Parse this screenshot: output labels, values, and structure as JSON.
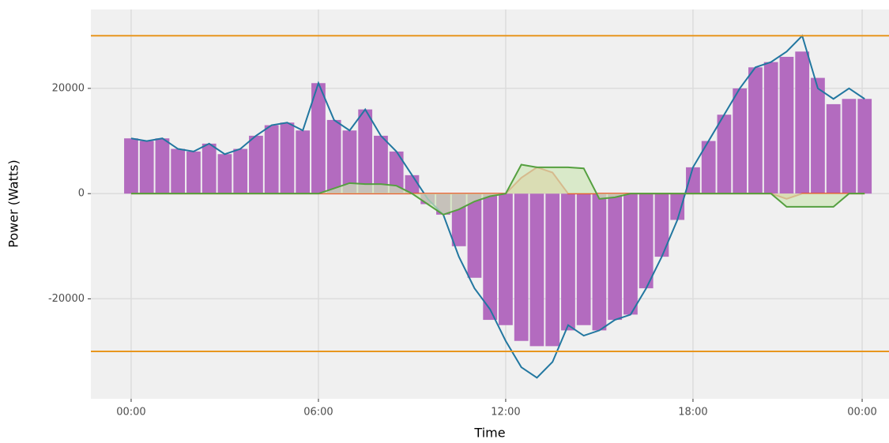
{
  "chart_data": {
    "type": "bar_line",
    "xlabel": "Time",
    "ylabel": "Power (Watts)",
    "xlim": [
      -1.29,
      24.28
    ],
    "ylim": [
      -39000,
      35000
    ],
    "xticks": [
      {
        "value": 0,
        "label": "00:00"
      },
      {
        "value": 6,
        "label": "06:00"
      },
      {
        "value": 12,
        "label": "12:00"
      },
      {
        "value": 18,
        "label": "18:00"
      },
      {
        "value": 23.42,
        "label": "00:00"
      }
    ],
    "yticks": [
      -20000,
      0,
      20000
    ],
    "grid": true,
    "x": [
      0,
      0.5,
      1,
      1.5,
      2,
      2.5,
      3,
      3.5,
      4,
      4.5,
      5,
      5.5,
      6,
      6.5,
      7,
      7.5,
      8,
      8.5,
      9,
      9.5,
      10,
      10.5,
      11,
      11.5,
      12,
      12.5,
      13,
      13.5,
      14,
      14.5,
      15,
      15.5,
      16,
      16.5,
      17,
      17.5,
      18,
      18.5,
      19,
      19.5,
      20,
      20.5,
      21,
      21.5,
      22,
      22.5,
      23,
      23.5
    ],
    "bars": {
      "color": "#b36bbf",
      "values": [
        10500,
        10000,
        10500,
        8500,
        8000,
        9500,
        7500,
        8500,
        11000,
        13000,
        13500,
        12000,
        21000,
        14000,
        12000,
        16000,
        11000,
        8000,
        3500,
        -2000,
        -4000,
        -10000,
        -16000,
        -24000,
        -25000,
        -28000,
        -29000,
        -29000,
        -26000,
        -25000,
        -26000,
        -24000,
        -23000,
        -18000,
        -12000,
        -5000,
        5000,
        10000,
        15000,
        20000,
        24000,
        25000,
        26000,
        27000,
        22000,
        17000,
        18000,
        18000
      ]
    },
    "series": [
      {
        "color": "#2277a0",
        "values": [
          10500,
          10000,
          10500,
          8500,
          8000,
          9500,
          7500,
          8500,
          11000,
          13000,
          13500,
          12000,
          21000,
          14000,
          12000,
          16000,
          11000,
          8000,
          3500,
          -1000,
          -4000,
          -12000,
          -18000,
          -22000,
          -28000,
          -33000,
          -35000,
          -32000,
          -25000,
          -27000,
          -26000,
          -24000,
          -23000,
          -18000,
          -12000,
          -5000,
          5000,
          10000,
          15000,
          20000,
          24000,
          25000,
          27000,
          30000,
          20000,
          18000,
          20000,
          18000
        ]
      },
      {
        "color": "#e8542a",
        "fill": "#f3b88f",
        "values": [
          0,
          0,
          0,
          0,
          0,
          0,
          0,
          0,
          0,
          0,
          0,
          0,
          0,
          0,
          0,
          0,
          0,
          0,
          0,
          0,
          0,
          0,
          0,
          0,
          0,
          3000,
          5000,
          4000,
          0,
          0,
          0,
          0,
          0,
          0,
          0,
          0,
          0,
          0,
          0,
          0,
          0,
          0,
          -1000,
          0,
          0,
          0,
          0,
          0
        ]
      },
      {
        "color": "#55a040",
        "fill": "#cfe5b8",
        "values": [
          0,
          0,
          0,
          0,
          0,
          0,
          0,
          0,
          0,
          0,
          0,
          0,
          0,
          1000,
          2000,
          1800,
          1800,
          1500,
          0,
          -2000,
          -4000,
          -3000,
          -1500,
          -500,
          0,
          5500,
          5000,
          5000,
          5000,
          4800,
          -1000,
          -700,
          0,
          0,
          0,
          0,
          0,
          0,
          0,
          0,
          0,
          0,
          -2500,
          -2500,
          -2500,
          -2500,
          0,
          0
        ]
      }
    ],
    "hlines": {
      "color": "#e8961e",
      "values": [
        30000,
        -30000
      ]
    }
  }
}
